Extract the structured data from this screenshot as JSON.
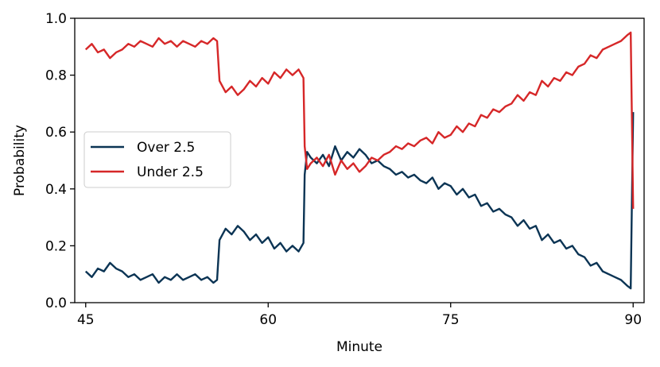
{
  "chart_data": {
    "type": "line",
    "xlabel": "Minute",
    "ylabel": "Probability",
    "xlim": [
      44.1,
      90.9
    ],
    "ylim": [
      0.0,
      1.0
    ],
    "xticks": [
      45,
      60,
      75,
      90
    ],
    "yticks": [
      "0.0",
      "0.2",
      "0.4",
      "0.6",
      "0.8",
      "1.0"
    ],
    "grid": false,
    "legend_position": "center-left",
    "series": [
      {
        "name": "Over 2.5",
        "color": "#0b3454",
        "x": [
          45,
          45.5,
          46,
          46.5,
          47,
          47.5,
          48,
          48.5,
          49,
          49.5,
          50,
          50.5,
          51,
          51.5,
          52,
          52.5,
          53,
          53.5,
          54,
          54.5,
          55,
          55.5,
          55.8,
          56,
          56.5,
          57,
          57.5,
          58,
          58.5,
          59,
          59.5,
          60,
          60.5,
          61,
          61.5,
          62,
          62.5,
          62.9,
          63,
          63.2,
          63.5,
          64,
          64.5,
          65,
          65.5,
          66,
          66.5,
          67,
          67.5,
          68,
          68.5,
          69,
          69.5,
          70,
          70.5,
          71,
          71.5,
          72,
          72.5,
          73,
          73.5,
          74,
          74.5,
          75,
          75.5,
          76,
          76.5,
          77,
          77.5,
          78,
          78.5,
          79,
          79.5,
          80,
          80.5,
          81,
          81.5,
          82,
          82.5,
          83,
          83.5,
          84,
          84.5,
          85,
          85.5,
          86,
          86.5,
          87,
          87.5,
          88,
          88.5,
          89,
          89.5,
          89.8,
          90
        ],
        "values": [
          0.11,
          0.09,
          0.12,
          0.11,
          0.14,
          0.12,
          0.11,
          0.09,
          0.1,
          0.08,
          0.09,
          0.1,
          0.07,
          0.09,
          0.08,
          0.1,
          0.08,
          0.09,
          0.1,
          0.08,
          0.09,
          0.07,
          0.08,
          0.22,
          0.26,
          0.24,
          0.27,
          0.25,
          0.22,
          0.24,
          0.21,
          0.23,
          0.19,
          0.21,
          0.18,
          0.2,
          0.18,
          0.21,
          0.45,
          0.53,
          0.51,
          0.49,
          0.52,
          0.48,
          0.55,
          0.5,
          0.53,
          0.51,
          0.54,
          0.52,
          0.49,
          0.5,
          0.48,
          0.47,
          0.45,
          0.46,
          0.44,
          0.45,
          0.43,
          0.42,
          0.44,
          0.4,
          0.42,
          0.41,
          0.38,
          0.4,
          0.37,
          0.38,
          0.34,
          0.35,
          0.32,
          0.33,
          0.31,
          0.3,
          0.27,
          0.29,
          0.26,
          0.27,
          0.22,
          0.24,
          0.21,
          0.22,
          0.19,
          0.2,
          0.17,
          0.16,
          0.13,
          0.14,
          0.11,
          0.1,
          0.09,
          0.08,
          0.06,
          0.05,
          0.67
        ]
      },
      {
        "name": "Under 2.5",
        "color": "#d62728",
        "x": [
          45,
          45.5,
          46,
          46.5,
          47,
          47.5,
          48,
          48.5,
          49,
          49.5,
          50,
          50.5,
          51,
          51.5,
          52,
          52.5,
          53,
          53.5,
          54,
          54.5,
          55,
          55.5,
          55.8,
          56,
          56.5,
          57,
          57.5,
          58,
          58.5,
          59,
          59.5,
          60,
          60.5,
          61,
          61.5,
          62,
          62.5,
          62.9,
          63,
          63.2,
          63.5,
          64,
          64.5,
          65,
          65.5,
          66,
          66.5,
          67,
          67.5,
          68,
          68.5,
          69,
          69.5,
          70,
          70.5,
          71,
          71.5,
          72,
          72.5,
          73,
          73.5,
          74,
          74.5,
          75,
          75.5,
          76,
          76.5,
          77,
          77.5,
          78,
          78.5,
          79,
          79.5,
          80,
          80.5,
          81,
          81.5,
          82,
          82.5,
          83,
          83.5,
          84,
          84.5,
          85,
          85.5,
          86,
          86.5,
          87,
          87.5,
          88,
          88.5,
          89,
          89.5,
          89.8,
          90
        ],
        "values": [
          0.89,
          0.91,
          0.88,
          0.89,
          0.86,
          0.88,
          0.89,
          0.91,
          0.9,
          0.92,
          0.91,
          0.9,
          0.93,
          0.91,
          0.92,
          0.9,
          0.92,
          0.91,
          0.9,
          0.92,
          0.91,
          0.93,
          0.92,
          0.78,
          0.74,
          0.76,
          0.73,
          0.75,
          0.78,
          0.76,
          0.79,
          0.77,
          0.81,
          0.79,
          0.82,
          0.8,
          0.82,
          0.79,
          0.55,
          0.47,
          0.49,
          0.51,
          0.48,
          0.52,
          0.45,
          0.5,
          0.47,
          0.49,
          0.46,
          0.48,
          0.51,
          0.5,
          0.52,
          0.53,
          0.55,
          0.54,
          0.56,
          0.55,
          0.57,
          0.58,
          0.56,
          0.6,
          0.58,
          0.59,
          0.62,
          0.6,
          0.63,
          0.62,
          0.66,
          0.65,
          0.68,
          0.67,
          0.69,
          0.7,
          0.73,
          0.71,
          0.74,
          0.73,
          0.78,
          0.76,
          0.79,
          0.78,
          0.81,
          0.8,
          0.83,
          0.84,
          0.87,
          0.86,
          0.89,
          0.9,
          0.91,
          0.92,
          0.94,
          0.95,
          0.33
        ]
      }
    ]
  }
}
